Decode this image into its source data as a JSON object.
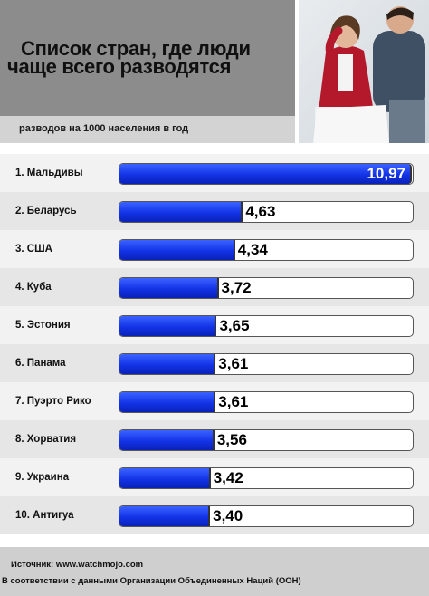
{
  "header": {
    "title_line1": "Список стран, где люди",
    "title_line2": "чаще всего разводятся",
    "subtitle": "разводов на 1000 населения в год"
  },
  "colors": {
    "bar": "#1233e6",
    "header_bg": "#8c8c8c",
    "subheader_bg": "#d3d3d3",
    "footer_bg": "#cfcfcf"
  },
  "chart_data": {
    "type": "bar",
    "orientation": "horizontal",
    "title": "Список стран, где люди чаще всего разводятся",
    "subtitle": "разводов на 1000 населения в год",
    "categories": [
      "1. Мальдивы",
      "2. Беларусь",
      "3. США",
      "4. Куба",
      "5. Эстония",
      "6. Панама",
      "7. Пуэрто Рико",
      "8. Хорватия",
      "9. Украина",
      "10. Антигуа"
    ],
    "values": [
      10.97,
      4.63,
      4.34,
      3.72,
      3.65,
      3.61,
      3.61,
      3.56,
      3.42,
      3.4
    ],
    "value_labels": [
      "10,97",
      "4,63",
      "4,34",
      "3,72",
      "3,65",
      "3,61",
      "3,61",
      "3,56",
      "3,42",
      "3,40"
    ],
    "xlim": [
      0,
      10.97
    ],
    "grid": false
  },
  "footer": {
    "source": "Источник: www.watchmojo.com",
    "note": "В соответствии с данными Организации Объединенных Наций (ООН)"
  },
  "photo": {
    "icon": "couple-photo"
  }
}
